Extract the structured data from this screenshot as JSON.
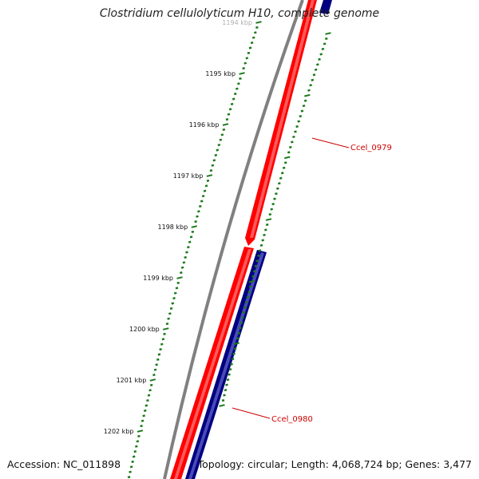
{
  "title": "Clostridium cellulolyticum H10, complete genome",
  "footer": {
    "accession": "Accession: NC_011898",
    "summary": "Topology: circular; Length: 4,068,724 bp; Genes: 3,477"
  },
  "scale": {
    "labels": [
      "1194 kbp",
      "1195 kbp",
      "1196 kbp",
      "1197 kbp",
      "1198 kbp",
      "1199 kbp",
      "1200 kbp",
      "1201 kbp",
      "1202 kbp"
    ]
  },
  "genes": [
    {
      "name": "Ccel_0979",
      "strand": "forward",
      "color": "#ff0000",
      "track_color": "#000080"
    },
    {
      "name": "Ccel_0980",
      "strand": "forward",
      "color": "#ff0000",
      "track_color": "#000080"
    }
  ],
  "colors": {
    "backbone": "#808080",
    "cds": "#ff0000",
    "cds_highlight": "#ff8080",
    "track": "#000080",
    "track_highlight": "#6a6ad0",
    "ticks": "#1a7a1a",
    "label": "#cc0000"
  }
}
